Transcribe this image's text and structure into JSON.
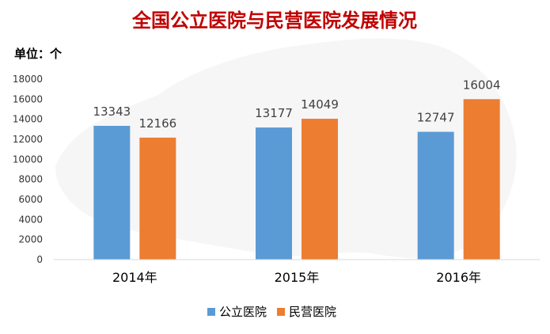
{
  "chart_data": {
    "type": "bar",
    "title": "全国公立医院与民营医院发展情况",
    "unit_label": "单位：个",
    "categories": [
      "2014年",
      "2015年",
      "2016年"
    ],
    "series": [
      {
        "name": "公立医院",
        "color": "#5b9bd5",
        "values": [
          13343,
          13177,
          12747
        ]
      },
      {
        "name": "民营医院",
        "color": "#ed7d31",
        "values": [
          12166,
          14049,
          16004
        ]
      }
    ],
    "ylim": [
      0,
      18000
    ],
    "yticks": [
      0,
      2000,
      4000,
      6000,
      8000,
      10000,
      12000,
      14000,
      16000,
      18000
    ],
    "grid": false,
    "legend": "bottom-center"
  }
}
